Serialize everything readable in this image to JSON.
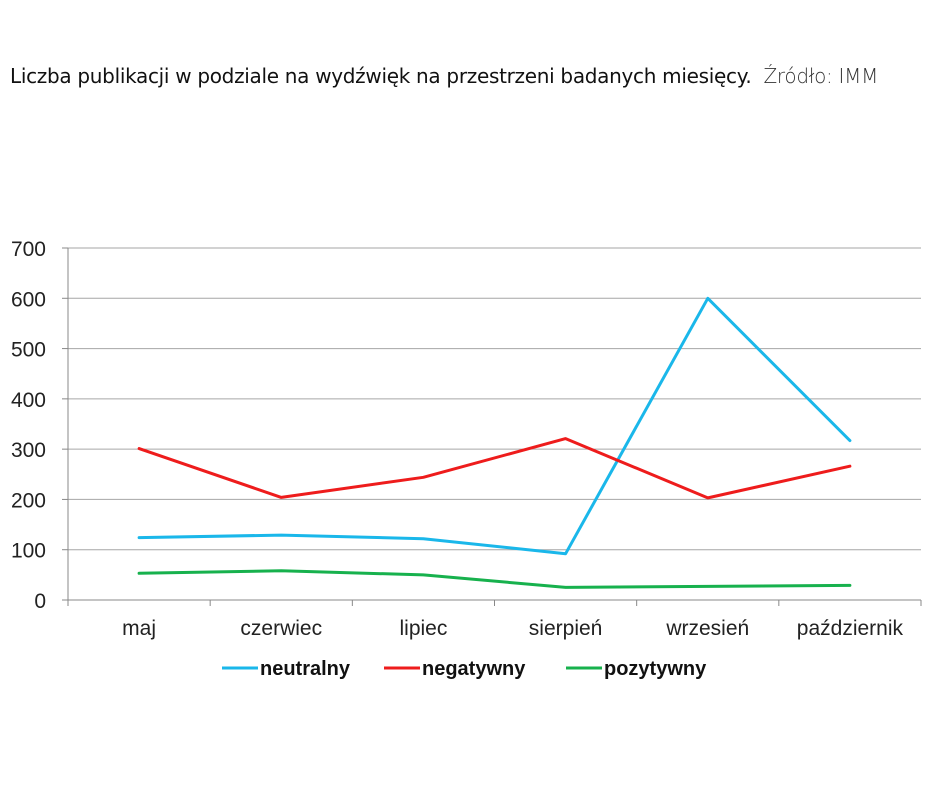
{
  "caption": {
    "title": "Liczba publikacji w podziale na wydźwięk na przestrzeni badanych miesięcy.",
    "source": "Źródło: IMM"
  },
  "chart_data": {
    "type": "line",
    "categories": [
      "maj",
      "czerwiec",
      "lipiec",
      "sierpień",
      "wrzesień",
      "październik"
    ],
    "ylim": [
      0,
      700
    ],
    "yticks": [
      "0",
      "100",
      "200",
      "300",
      "400",
      "500",
      "600",
      "700"
    ],
    "grid": true,
    "legend": "bottom",
    "series": [
      {
        "name": "neutralny",
        "color": "#1ab7ea",
        "values": [
          124,
          129,
          122,
          92,
          600,
          317
        ]
      },
      {
        "name": "negatywny",
        "color": "#ee1c1c",
        "values": [
          301,
          204,
          244,
          321,
          203,
          266
        ]
      },
      {
        "name": "pozytywny",
        "color": "#17b14d",
        "values": [
          53,
          58,
          50,
          25,
          27,
          29
        ]
      }
    ]
  }
}
